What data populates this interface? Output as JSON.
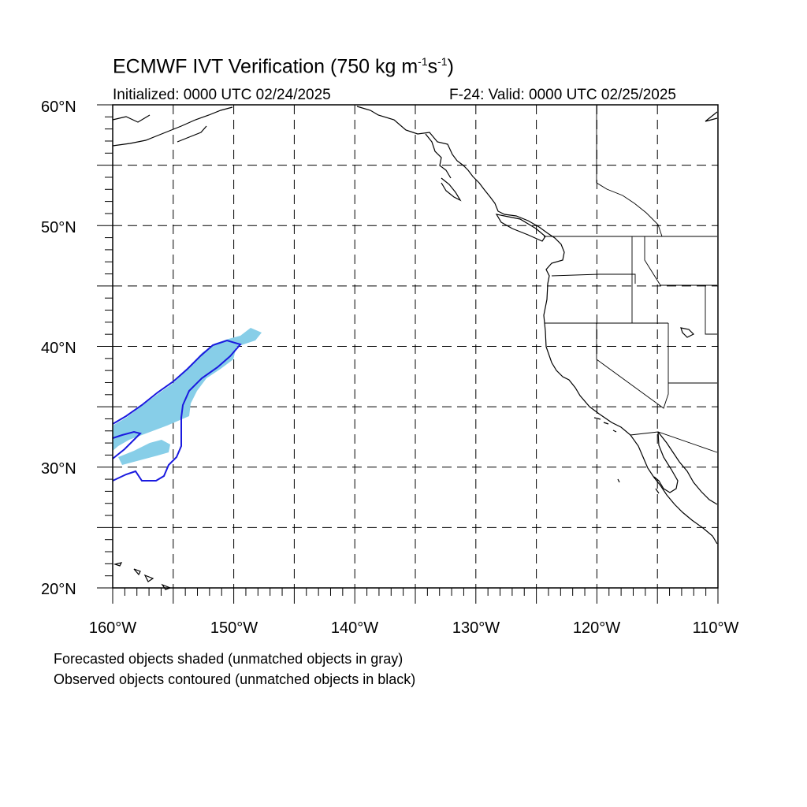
{
  "title": {
    "main_prefix": "ECMWF IVT Verification (750 kg m",
    "exp1": "-1",
    "mid": "s",
    "exp2": "-1",
    "suffix": ")"
  },
  "subtitle": {
    "initialized": "Initialized: 0000 UTC 02/24/2025",
    "valid": "F-24: Valid: 0000 UTC 02/25/2025"
  },
  "map": {
    "lon_range": [
      -160,
      -110
    ],
    "lat_range": [
      20,
      60
    ],
    "grid": "dashed every 5 degrees",
    "lat_labels": [
      "20°N",
      "30°N",
      "40°N",
      "50°N",
      "60°N"
    ],
    "lon_labels": [
      "160°W",
      "150°W",
      "140°W",
      "130°W",
      "120°W",
      "110°W"
    ],
    "colors": {
      "forecast_fill": "#87cee8",
      "observed_contour": "#1a1adf",
      "coastline": "#000000"
    }
  },
  "notes": {
    "line1": "Forecasted objects shaded (unmatched objects in gray)",
    "line2": "Observed objects contoured (unmatched objects in black)"
  }
}
